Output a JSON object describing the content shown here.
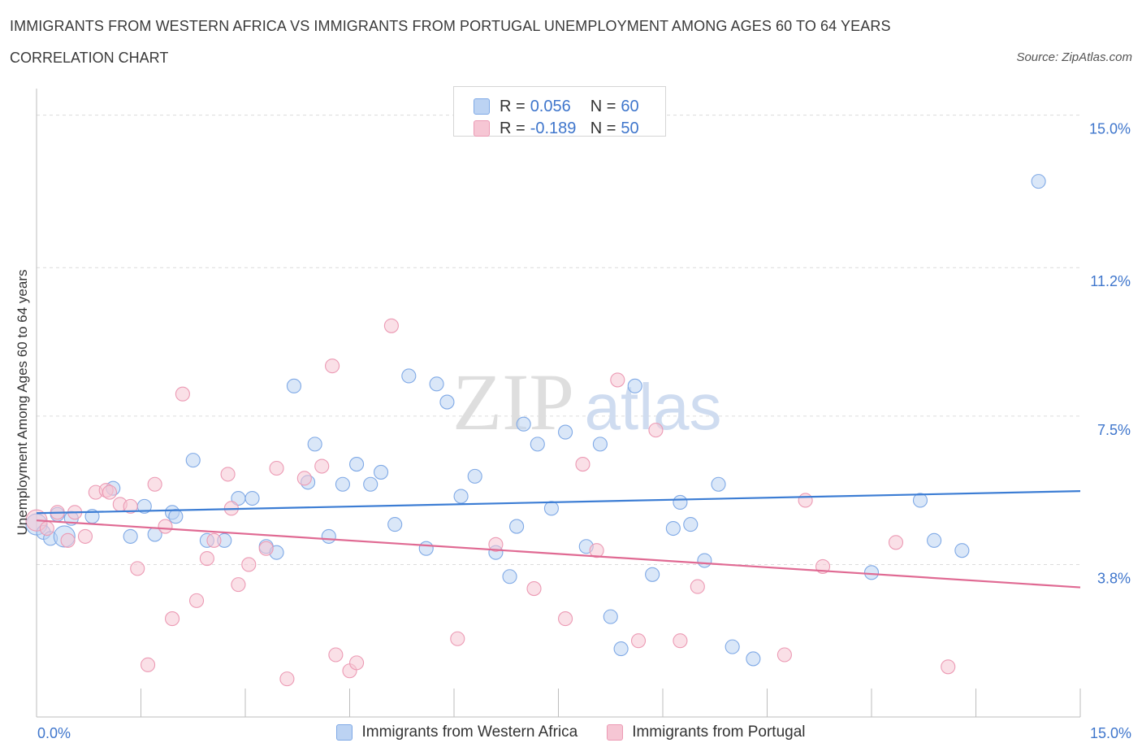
{
  "title": "IMMIGRANTS FROM WESTERN AFRICA VS IMMIGRANTS FROM PORTUGAL UNEMPLOYMENT AMONG AGES 60 TO 64 YEARS",
  "subtitle": "CORRELATION CHART",
  "source": "Source: ZipAtlas.com",
  "watermark": {
    "zip": "ZIP",
    "atlas": "atlas"
  },
  "legend": {
    "rows": [
      {
        "r_label": "R =",
        "r_value": "0.056",
        "n_label": "N =",
        "n_value": "60"
      },
      {
        "r_label": "R =",
        "r_value": "-0.189",
        "n_label": "N =",
        "n_value": "50"
      }
    ]
  },
  "chart_data": {
    "type": "scatter",
    "ylabel": "Unemployment Among Ages 60 to 64 years",
    "xlim": [
      0,
      15
    ],
    "ylim": [
      0,
      15.5
    ],
    "x_tick_labels": [
      {
        "value": 0,
        "label": "0.0%"
      },
      {
        "value": 15,
        "label": "15.0%"
      }
    ],
    "y_tick_labels": [
      {
        "value": 3.8,
        "label": "3.8%"
      },
      {
        "value": 7.5,
        "label": "7.5%"
      },
      {
        "value": 11.2,
        "label": "11.2%"
      },
      {
        "value": 15.0,
        "label": "15.0%"
      }
    ],
    "x_minor_ticks": [
      1.5,
      3.0,
      4.5,
      6.0,
      7.5,
      9.0,
      10.5,
      12.0,
      13.5
    ],
    "grid": true,
    "legend_position": "bottom-center",
    "series": [
      {
        "name": "Immigrants from Western Africa",
        "color": "#7fa9e6",
        "fill": "#bcd3f3",
        "trend": {
          "x": [
            0,
            15
          ],
          "y": [
            5.08,
            5.63
          ]
        },
        "points": [
          [
            0.0,
            4.8
          ],
          [
            0.1,
            4.6
          ],
          [
            0.2,
            4.45
          ],
          [
            0.3,
            5.05
          ],
          [
            0.5,
            4.95
          ],
          [
            0.8,
            5.0
          ],
          [
            1.1,
            5.7
          ],
          [
            1.35,
            4.5
          ],
          [
            1.55,
            5.25
          ],
          [
            1.7,
            4.55
          ],
          [
            1.95,
            5.1
          ],
          [
            2.0,
            5.0
          ],
          [
            2.25,
            6.4
          ],
          [
            2.45,
            4.4
          ],
          [
            2.7,
            4.4
          ],
          [
            2.9,
            5.45
          ],
          [
            3.1,
            5.45
          ],
          [
            3.3,
            4.25
          ],
          [
            3.45,
            4.1
          ],
          [
            3.7,
            8.25
          ],
          [
            3.9,
            5.85
          ],
          [
            4.0,
            6.8
          ],
          [
            4.2,
            4.5
          ],
          [
            4.4,
            5.8
          ],
          [
            4.6,
            6.3
          ],
          [
            4.8,
            5.8
          ],
          [
            4.95,
            6.1
          ],
          [
            5.15,
            4.8
          ],
          [
            5.35,
            8.5
          ],
          [
            5.6,
            4.2
          ],
          [
            5.75,
            8.3
          ],
          [
            5.9,
            7.85
          ],
          [
            6.1,
            5.5
          ],
          [
            6.3,
            6.0
          ],
          [
            6.6,
            4.1
          ],
          [
            6.8,
            3.5
          ],
          [
            6.9,
            4.75
          ],
          [
            7.0,
            7.3
          ],
          [
            7.2,
            6.8
          ],
          [
            7.4,
            5.2
          ],
          [
            7.6,
            7.1
          ],
          [
            7.9,
            4.25
          ],
          [
            8.1,
            6.8
          ],
          [
            8.25,
            2.5
          ],
          [
            8.4,
            1.7
          ],
          [
            8.6,
            8.25
          ],
          [
            8.85,
            3.55
          ],
          [
            9.15,
            4.7
          ],
          [
            9.25,
            5.35
          ],
          [
            9.4,
            4.8
          ],
          [
            9.6,
            3.9
          ],
          [
            9.8,
            5.8
          ],
          [
            10.0,
            1.75
          ],
          [
            10.3,
            1.45
          ],
          [
            12.0,
            3.6
          ],
          [
            12.7,
            5.4
          ],
          [
            12.9,
            4.4
          ],
          [
            13.3,
            4.15
          ],
          [
            14.4,
            13.35
          ],
          [
            0.4,
            4.5
          ]
        ]
      },
      {
        "name": "Immigrants from Portugal",
        "color": "#ec9ab4",
        "fill": "#f6c6d4",
        "trend": {
          "x": [
            0,
            15
          ],
          "y": [
            4.9,
            3.23
          ]
        },
        "points": [
          [
            0.0,
            4.9
          ],
          [
            0.15,
            4.7
          ],
          [
            0.3,
            5.1
          ],
          [
            0.45,
            4.4
          ],
          [
            0.55,
            5.1
          ],
          [
            0.7,
            4.5
          ],
          [
            0.85,
            5.6
          ],
          [
            1.0,
            5.65
          ],
          [
            1.05,
            5.6
          ],
          [
            1.2,
            5.3
          ],
          [
            1.35,
            5.25
          ],
          [
            1.45,
            3.7
          ],
          [
            1.6,
            1.3
          ],
          [
            1.7,
            5.8
          ],
          [
            1.85,
            4.75
          ],
          [
            1.95,
            2.45
          ],
          [
            2.1,
            8.05
          ],
          [
            2.3,
            2.9
          ],
          [
            2.45,
            3.95
          ],
          [
            2.55,
            4.4
          ],
          [
            2.75,
            6.05
          ],
          [
            2.8,
            5.2
          ],
          [
            2.9,
            3.3
          ],
          [
            3.05,
            3.8
          ],
          [
            3.3,
            4.2
          ],
          [
            3.45,
            6.2
          ],
          [
            3.6,
            0.95
          ],
          [
            3.85,
            5.95
          ],
          [
            4.1,
            6.25
          ],
          [
            4.25,
            8.75
          ],
          [
            4.3,
            1.55
          ],
          [
            4.5,
            1.15
          ],
          [
            4.6,
            1.35
          ],
          [
            5.1,
            9.75
          ],
          [
            6.05,
            1.95
          ],
          [
            6.6,
            4.3
          ],
          [
            7.15,
            3.2
          ],
          [
            7.6,
            2.45
          ],
          [
            7.85,
            6.3
          ],
          [
            8.05,
            4.15
          ],
          [
            8.35,
            8.4
          ],
          [
            8.65,
            1.9
          ],
          [
            8.9,
            7.15
          ],
          [
            9.25,
            1.9
          ],
          [
            9.5,
            3.25
          ],
          [
            10.75,
            1.55
          ],
          [
            11.05,
            5.4
          ],
          [
            11.3,
            3.75
          ],
          [
            12.35,
            4.35
          ],
          [
            13.1,
            1.25
          ]
        ]
      }
    ]
  },
  "bottom_legend": [
    {
      "label": "Immigrants from Western Africa"
    },
    {
      "label": "Immigrants from Portugal"
    }
  ]
}
